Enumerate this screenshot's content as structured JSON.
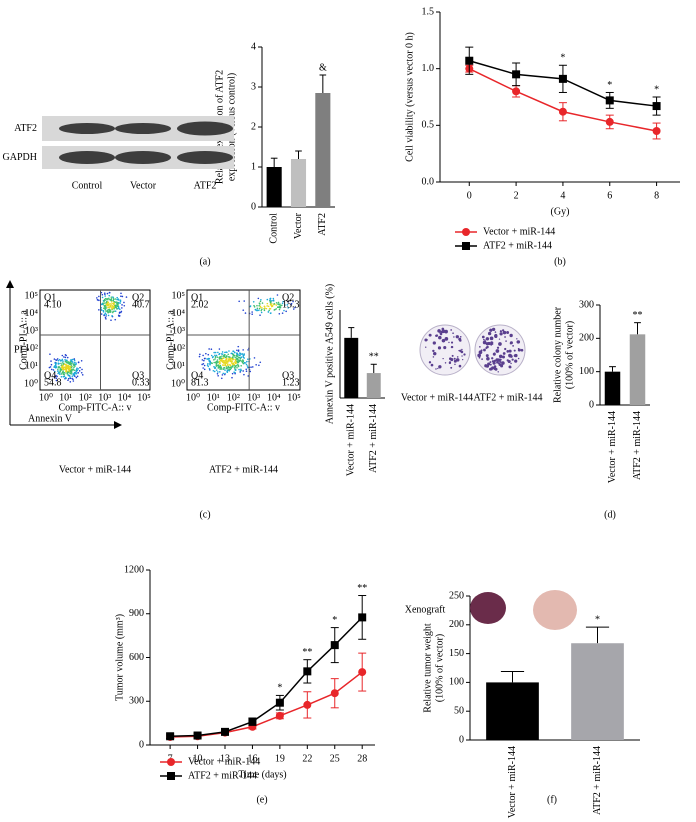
{
  "panel_labels": [
    "(a)",
    "(b)",
    "(c)",
    "(d)",
    "(e)",
    "(f)"
  ],
  "blot": {
    "rows": [
      "ATF2",
      "GAPDH"
    ],
    "lanes": [
      "Control",
      "Vector",
      "ATF2"
    ]
  },
  "flow": {
    "y_axis": "PI",
    "x_axis": "Annexin V",
    "ticks": [
      "10⁰",
      "10¹",
      "10²",
      "10³",
      "10⁴",
      "10⁵"
    ],
    "plots": [
      {
        "ylabel": "Comp-PI-A:: a",
        "xlabel": "Comp-FITC-A:: v",
        "caption": "Vector + miR-144",
        "quadrants": [
          {
            "name": "Q1",
            "value": "4.10"
          },
          {
            "name": "Q2",
            "value": "40.7"
          },
          {
            "name": "Q4",
            "value": "54.8"
          },
          {
            "name": "Q3",
            "value": "0.33"
          }
        ]
      },
      {
        "ylabel": "Comp-PI-A:: a",
        "xlabel": "Comp-FITC-A:: v",
        "caption": "ATF2 + miR-144",
        "quadrants": [
          {
            "name": "Q1",
            "value": "2.02"
          },
          {
            "name": "Q2",
            "value": "15.3"
          },
          {
            "name": "Q4",
            "value": "81.3"
          },
          {
            "name": "Q3",
            "value": "1.23"
          }
        ]
      }
    ]
  },
  "colony": {
    "dishes": [
      "Vector + miR-144",
      "ATF2 + miR-144"
    ]
  },
  "xenograft": "Xenograft",
  "chart_data": [
    {
      "type": "bar",
      "ylabel": [
        "Relative expression of ATF2",
        "expression (versus control)"
      ],
      "categories": [
        "Control",
        "Vector",
        "ATF2"
      ],
      "values": [
        1.0,
        1.2,
        2.85
      ],
      "errors": [
        0.22,
        0.2,
        0.45
      ],
      "colors": [
        "#000000",
        "#bfbfbf",
        "#7f7f7f"
      ],
      "annotations": [
        null,
        null,
        "&"
      ],
      "ylim": [
        0,
        4
      ],
      "yticks": [
        0,
        1,
        2,
        3,
        4
      ]
    },
    {
      "type": "line",
      "ylabel": [
        "Cell viability (versus vector 0 h)"
      ],
      "xlabel": "(Gy)",
      "x": [
        0,
        2,
        4,
        6,
        8
      ],
      "xlim": [
        -1.25,
        9
      ],
      "xticks": [
        0,
        2,
        4,
        6,
        8
      ],
      "ylim": [
        0,
        1.5
      ],
      "yticks": [
        {
          "value": 0,
          "label": "0.0"
        },
        0.5,
        {
          "value": 1,
          "label": "1.0"
        },
        1.5
      ],
      "legend": "bottom",
      "annotations": [
        null,
        null,
        "*",
        "*",
        "*"
      ],
      "series": [
        {
          "name": "Vector + miR-144",
          "color": "#e8262a",
          "marker": "circle",
          "values": [
            1.0,
            0.8,
            0.62,
            0.53,
            0.45
          ],
          "errors": [
            0.03,
            0.05,
            0.08,
            0.06,
            0.07
          ]
        },
        {
          "name": "ATF2 + miR-144",
          "color": "#000000",
          "marker": "square",
          "values": [
            1.07,
            0.95,
            0.91,
            0.72,
            0.67
          ],
          "errors": [
            0.12,
            0.1,
            0.12,
            0.07,
            0.08
          ]
        }
      ]
    },
    {
      "type": "bar",
      "ylabel": [
        "Annexin V positive A549 cells (%)"
      ],
      "categories": [
        "Vector + miR-144",
        "ATF2 + miR-144"
      ],
      "values": [
        41,
        17
      ],
      "errors": [
        7,
        6
      ],
      "colors": [
        "#000000",
        "#a0a0a0"
      ],
      "annotations": [
        null,
        "**"
      ],
      "ylim": [
        0,
        60
      ]
    },
    {
      "type": "bar",
      "ylabel": [
        "Relative colony number",
        "(100% of vector)"
      ],
      "categories": [
        "Vector + miR-144",
        "ATF2 + miR-144"
      ],
      "values": [
        100,
        212
      ],
      "errors": [
        15,
        35
      ],
      "colors": [
        "#000000",
        "#a0a0a0"
      ],
      "annotations": [
        null,
        "**"
      ],
      "ylim": [
        0,
        300
      ],
      "yticks": [
        0,
        100,
        200,
        300
      ]
    },
    {
      "type": "line",
      "ylabel": [
        "Tumor volume (mm³)"
      ],
      "xlabel": "Time (days)",
      "x": [
        7,
        10,
        13,
        16,
        19,
        22,
        25,
        28
      ],
      "xlim": [
        4.8,
        29.4
      ],
      "xticks": [
        7,
        10,
        13,
        16,
        19,
        22,
        25,
        28
      ],
      "ylim": [
        0,
        1200
      ],
      "yticks": [
        0,
        300,
        600,
        900,
        1200
      ],
      "legend": "bottom",
      "annotations": [
        null,
        null,
        null,
        null,
        "*",
        "**",
        "*",
        "**"
      ],
      "series": [
        {
          "name": "Vector + miR-144",
          "color": "#e8262a",
          "marker": "circle",
          "values": [
            55,
            60,
            85,
            125,
            200,
            275,
            355,
            500
          ],
          "errors": [
            10,
            10,
            12,
            15,
            20,
            90,
            100,
            130
          ]
        },
        {
          "name": "ATF2 + miR-144",
          "color": "#000000",
          "marker": "square",
          "values": [
            60,
            65,
            90,
            160,
            290,
            505,
            685,
            875
          ],
          "errors": [
            15,
            15,
            15,
            25,
            50,
            80,
            120,
            150
          ]
        }
      ]
    },
    {
      "type": "bar",
      "ylabel": [
        "Relative tumor weight",
        "(100% of vector)"
      ],
      "categories": [
        "Vector + miR-144",
        "ATF2 + miR-144"
      ],
      "values": [
        100,
        168
      ],
      "errors": [
        19,
        28
      ],
      "colors": [
        "#000000",
        "#a6a6ab"
      ],
      "annotations": [
        null,
        "*"
      ],
      "ylim": [
        0,
        250
      ],
      "yticks": [
        0,
        50,
        100,
        150,
        200,
        250
      ]
    }
  ]
}
